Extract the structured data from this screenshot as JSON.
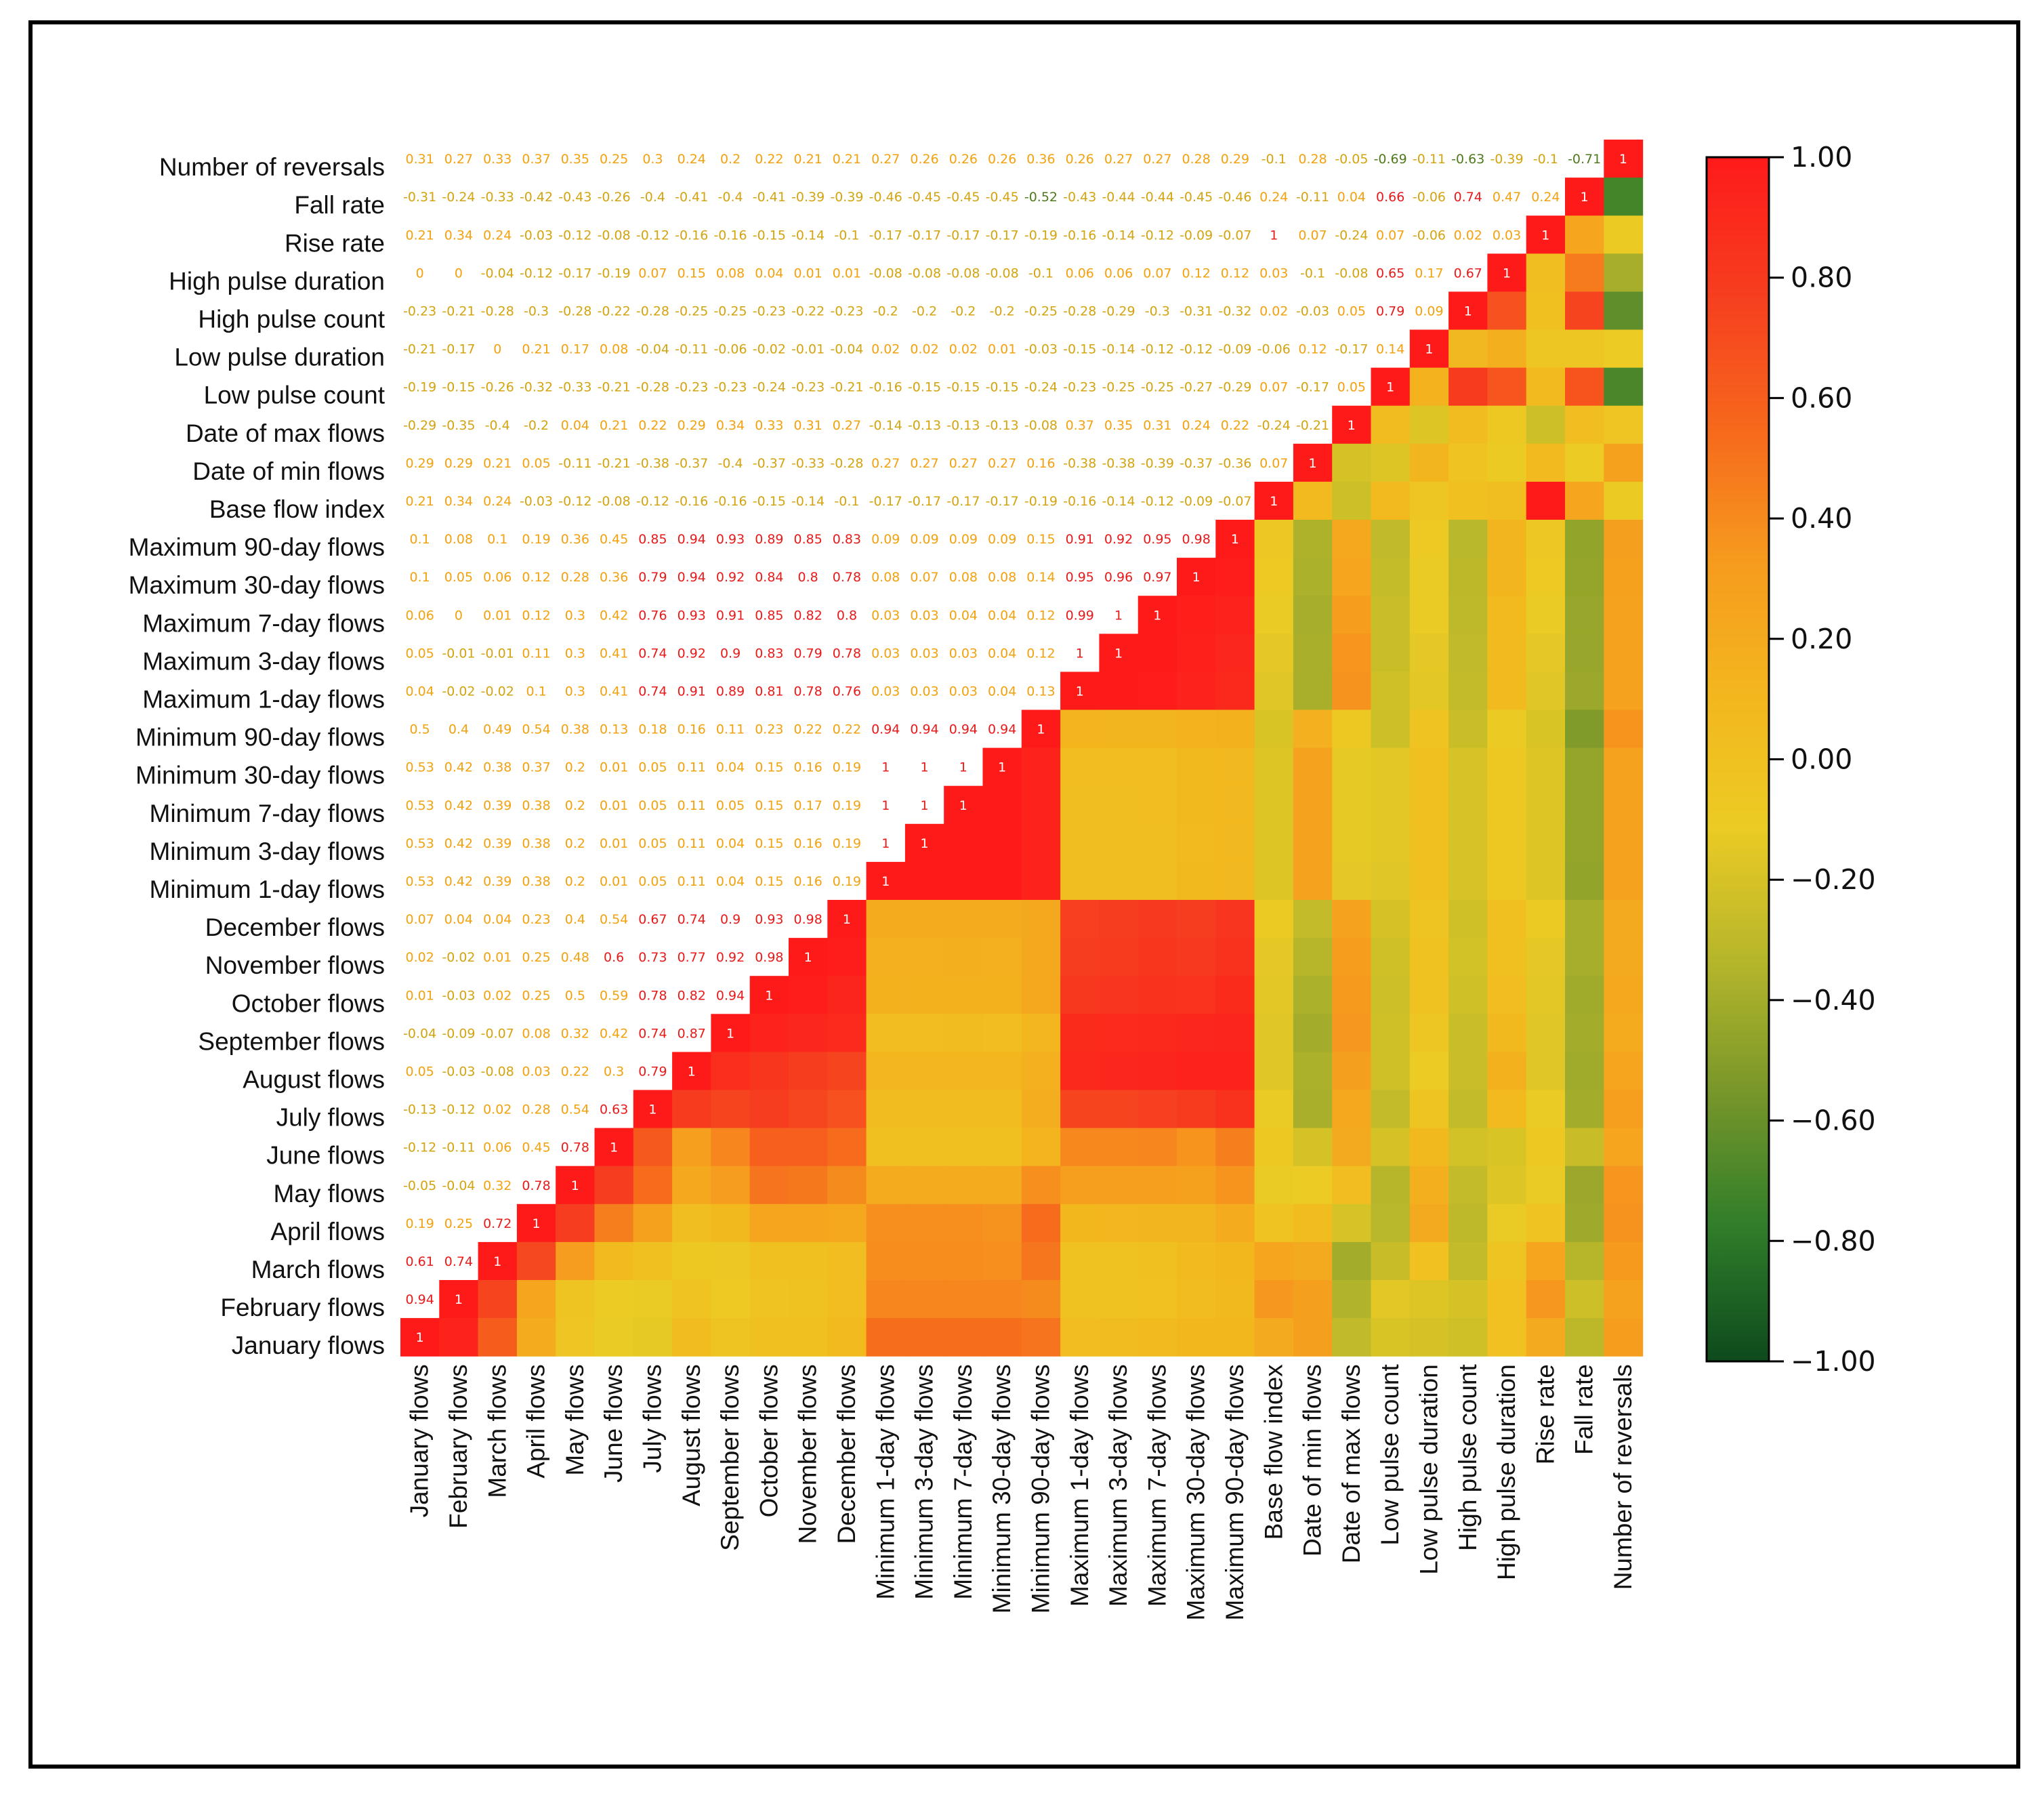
{
  "chart_data": {
    "type": "heatmap",
    "title": "",
    "variables": [
      "January flows",
      "February flows",
      "March flows",
      "April flows",
      "May flows",
      "June flows",
      "July flows",
      "August flows",
      "September flows",
      "October flows",
      "November flows",
      "December flows",
      "Minimum 1-day flows",
      "Minimum 3-day flows",
      "Minimum 7-day flows",
      "Minimum 30-day flows",
      "Minimum 90-day flows",
      "Maximum 1-day flows",
      "Maximum 3-day flows",
      "Maximum 7-day flows",
      "Maximum 30-day flows",
      "Maximum 90-day flows",
      "Base flow index",
      "Date of min flows",
      "Date of max flows",
      "Low pulse count",
      "Low pulse duration",
      "High pulse count",
      "High pulse duration",
      "Rise rate",
      "Fall rate",
      "Number of reversals"
    ],
    "upper_triangle_values": [
      [
        "1"
      ],
      [
        "0.94",
        "1"
      ],
      [
        "0.61",
        "0.74",
        "1"
      ],
      [
        "0.19",
        "0.25",
        "0.72",
        "1"
      ],
      [
        "-0.05",
        "-0.04",
        "0.32",
        "0.78",
        "1"
      ],
      [
        "-0.12",
        "-0.11",
        "0.06",
        "0.45",
        "0.78",
        "1"
      ],
      [
        "-0.13",
        "-0.12",
        "0.02",
        "0.28",
        "0.54",
        "0.63",
        "1"
      ],
      [
        "0.05",
        "-0.03",
        "-0.08",
        "0.03",
        "0.22",
        "0.3",
        "0.79",
        "1"
      ],
      [
        "-0.04",
        "-0.09",
        "-0.07",
        "0.08",
        "0.32",
        "0.42",
        "0.74",
        "0.87",
        "1"
      ],
      [
        "0.01",
        "-0.03",
        "0.02",
        "0.25",
        "0.5",
        "0.59",
        "0.78",
        "0.82",
        "0.94",
        "1"
      ],
      [
        "0.02",
        "-0.02",
        "0.01",
        "0.25",
        "0.48",
        "0.6",
        "0.73",
        "0.77",
        "0.92",
        "0.98",
        "1"
      ],
      [
        "0.07",
        "0.04",
        "0.04",
        "0.23",
        "0.4",
        "0.54",
        "0.67",
        "0.74",
        "0.9",
        "0.93",
        "0.98",
        "1"
      ],
      [
        "0.53",
        "0.42",
        "0.39",
        "0.38",
        "0.2",
        "0.01",
        "0.05",
        "0.11",
        "0.04",
        "0.15",
        "0.16",
        "0.19",
        "1"
      ],
      [
        "0.53",
        "0.42",
        "0.39",
        "0.38",
        "0.2",
        "0.01",
        "0.05",
        "0.11",
        "0.04",
        "0.15",
        "0.16",
        "0.19",
        "1",
        "1"
      ],
      [
        "0.53",
        "0.42",
        "0.39",
        "0.38",
        "0.2",
        "0.01",
        "0.05",
        "0.11",
        "0.05",
        "0.15",
        "0.17",
        "0.19",
        "1",
        "1",
        "1"
      ],
      [
        "0.53",
        "0.42",
        "0.38",
        "0.37",
        "0.2",
        "0.01",
        "0.05",
        "0.11",
        "0.04",
        "0.15",
        "0.16",
        "0.19",
        "1",
        "1",
        "1",
        "1"
      ],
      [
        "0.5",
        "0.4",
        "0.49",
        "0.54",
        "0.38",
        "0.13",
        "0.18",
        "0.16",
        "0.11",
        "0.23",
        "0.22",
        "0.22",
        "0.94",
        "0.94",
        "0.94",
        "0.94",
        "1"
      ],
      [
        "0.04",
        "-0.02",
        "-0.02",
        "0.1",
        "0.3",
        "0.41",
        "0.74",
        "0.91",
        "0.89",
        "0.81",
        "0.78",
        "0.76",
        "0.03",
        "0.03",
        "0.03",
        "0.04",
        "0.13",
        "1"
      ],
      [
        "0.05",
        "-0.01",
        "-0.01",
        "0.11",
        "0.3",
        "0.41",
        "0.74",
        "0.92",
        "0.9",
        "0.83",
        "0.79",
        "0.78",
        "0.03",
        "0.03",
        "0.03",
        "0.04",
        "0.12",
        "1",
        "1"
      ],
      [
        "0.06",
        "0",
        "0.01",
        "0.12",
        "0.3",
        "0.42",
        "0.76",
        "0.93",
        "0.91",
        "0.85",
        "0.82",
        "0.8",
        "0.03",
        "0.03",
        "0.04",
        "0.04",
        "0.12",
        "0.99",
        "1",
        "1"
      ],
      [
        "0.1",
        "0.05",
        "0.06",
        "0.12",
        "0.28",
        "0.36",
        "0.79",
        "0.94",
        "0.92",
        "0.84",
        "0.8",
        "0.78",
        "0.08",
        "0.07",
        "0.08",
        "0.08",
        "0.14",
        "0.95",
        "0.96",
        "0.97",
        "1"
      ],
      [
        "0.1",
        "0.08",
        "0.1",
        "0.19",
        "0.36",
        "0.45",
        "0.85",
        "0.94",
        "0.93",
        "0.89",
        "0.85",
        "0.83",
        "0.09",
        "0.09",
        "0.09",
        "0.09",
        "0.15",
        "0.91",
        "0.92",
        "0.95",
        "0.98",
        "1"
      ],
      [
        "0.21",
        "0.34",
        "0.24",
        "-0.03",
        "-0.12",
        "-0.08",
        "-0.12",
        "-0.16",
        "-0.16",
        "-0.15",
        "-0.14",
        "-0.1",
        "-0.17",
        "-0.17",
        "-0.17",
        "-0.17",
        "-0.19",
        "-0.16",
        "-0.14",
        "-0.12",
        "-0.09",
        "-0.07",
        "1"
      ],
      [
        "0.29",
        "0.29",
        "0.21",
        "0.05",
        "-0.11",
        "-0.21",
        "-0.38",
        "-0.37",
        "-0.4",
        "-0.37",
        "-0.33",
        "-0.28",
        "0.27",
        "0.27",
        "0.27",
        "0.27",
        "0.16",
        "-0.38",
        "-0.38",
        "-0.39",
        "-0.37",
        "-0.36",
        "0.07",
        "1"
      ],
      [
        "-0.29",
        "-0.35",
        "-0.4",
        "-0.2",
        "0.04",
        "0.21",
        "0.22",
        "0.29",
        "0.34",
        "0.33",
        "0.31",
        "0.27",
        "-0.14",
        "-0.13",
        "-0.13",
        "-0.13",
        "-0.08",
        "0.37",
        "0.35",
        "0.31",
        "0.24",
        "0.22",
        "-0.24",
        "-0.21",
        "1"
      ],
      [
        "-0.19",
        "-0.15",
        "-0.26",
        "-0.32",
        "-0.33",
        "-0.21",
        "-0.28",
        "-0.23",
        "-0.23",
        "-0.24",
        "-0.23",
        "-0.21",
        "-0.16",
        "-0.15",
        "-0.15",
        "-0.15",
        "-0.24",
        "-0.23",
        "-0.25",
        "-0.25",
        "-0.27",
        "-0.29",
        "0.07",
        "-0.17",
        "0.05",
        "1"
      ],
      [
        "-0.21",
        "-0.17",
        "0",
        "0.21",
        "0.17",
        "0.08",
        "-0.04",
        "-0.11",
        "-0.06",
        "-0.02",
        "-0.01",
        "-0.04",
        "0.02",
        "0.02",
        "0.02",
        "0.01",
        "-0.03",
        "-0.15",
        "-0.14",
        "-0.12",
        "-0.12",
        "-0.09",
        "-0.06",
        "0.12",
        "-0.17",
        "0.14",
        "1"
      ],
      [
        "-0.23",
        "-0.21",
        "-0.28",
        "-0.3",
        "-0.28",
        "-0.22",
        "-0.28",
        "-0.25",
        "-0.25",
        "-0.23",
        "-0.22",
        "-0.23",
        "-0.2",
        "-0.2",
        "-0.2",
        "-0.2",
        "-0.25",
        "-0.28",
        "-0.29",
        "-0.3",
        "-0.31",
        "-0.32",
        "0.02",
        "-0.03",
        "0.05",
        "0.79",
        "0.09",
        "1"
      ],
      [
        "0",
        "0",
        "-0.04",
        "-0.12",
        "-0.17",
        "-0.19",
        "0.07",
        "0.15",
        "0.08",
        "0.04",
        "0.01",
        "0.01",
        "-0.08",
        "-0.08",
        "-0.08",
        "-0.08",
        "-0.1",
        "0.06",
        "0.06",
        "0.07",
        "0.12",
        "0.12",
        "0.03",
        "-0.1",
        "-0.08",
        "0.65",
        "0.17",
        "0.67",
        "1"
      ],
      [
        "0.21",
        "0.34",
        "0.24",
        "-0.03",
        "-0.12",
        "-0.08",
        "-0.12",
        "-0.16",
        "-0.16",
        "-0.15",
        "-0.14",
        "-0.1",
        "-0.17",
        "-0.17",
        "-0.17",
        "-0.17",
        "-0.19",
        "-0.16",
        "-0.14",
        "-0.12",
        "-0.09",
        "-0.07",
        "1",
        "0.07",
        "-0.24",
        "0.07",
        "-0.06",
        "0.02",
        "0.03",
        "1"
      ],
      [
        "-0.31",
        "-0.24",
        "-0.33",
        "-0.42",
        "-0.43",
        "-0.26",
        "-0.4",
        "-0.41",
        "-0.4",
        "-0.41",
        "-0.39",
        "-0.39",
        "-0.46",
        "-0.45",
        "-0.45",
        "-0.45",
        "-0.52",
        "-0.43",
        "-0.44",
        "-0.44",
        "-0.45",
        "-0.46",
        "0.24",
        "-0.11",
        "0.04",
        "0.66",
        "-0.06",
        "0.74",
        "0.47",
        "0.24",
        "1"
      ],
      [
        "0.31",
        "0.27",
        "0.33",
        "0.37",
        "0.35",
        "0.25",
        "0.3",
        "0.24",
        "0.2",
        "0.22",
        "0.21",
        "0.21",
        "0.27",
        "0.26",
        "0.26",
        "0.26",
        "0.36",
        "0.26",
        "0.27",
        "0.27",
        "0.28",
        "0.29",
        "-0.1",
        "0.28",
        "-0.05",
        "-0.69",
        "-0.11",
        "-0.63",
        "-0.39",
        "-0.1",
        "-0.71",
        "1"
      ]
    ],
    "colorbar": {
      "min": -1.0,
      "max": 1.0,
      "tick_labels": [
        "1.00",
        "0.80",
        "0.60",
        "0.40",
        "0.20",
        "0.00",
        "−0.20",
        "−0.40",
        "−0.60",
        "−0.80",
        "−1.00"
      ],
      "colors": [
        "#0e4a1d",
        "#2f7d2a",
        "#77962a",
        "#b6b62b",
        "#eccb24",
        "#f3b61e",
        "#f69a1e",
        "#f6671c",
        "#f63d1f",
        "#ff1a1a"
      ]
    }
  }
}
